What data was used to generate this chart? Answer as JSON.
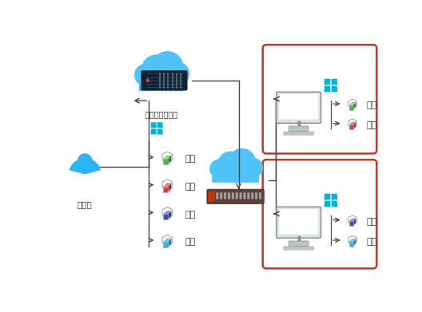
{
  "bg_color": "#ffffff",
  "fig_w": 5.28,
  "fig_h": 3.91,
  "dpi": 100,
  "admin_label": "管理员",
  "cloud1_label": "森途云管理平台",
  "apps_left": [
    {
      "label": "设计",
      "color_fill": "#4caf50",
      "color_outline": "#999999"
    },
    {
      "label": "编程",
      "color_fill": "#e53935",
      "color_outline": "#999999"
    },
    {
      "label": "语音",
      "color_fill": "#3f51b5",
      "color_outline": "#999999"
    },
    {
      "label": "办公",
      "color_fill": "#29b6f6",
      "color_outline": "#999999"
    }
  ],
  "box1_apps": [
    {
      "label": "设计",
      "color_fill": "#4caf50",
      "color_outline": "#999999"
    },
    {
      "label": "编程",
      "color_fill": "#e53935",
      "color_outline": "#999999"
    }
  ],
  "box2_apps": [
    {
      "label": "语音",
      "color_fill": "#3f51b5",
      "color_outline": "#999999"
    },
    {
      "label": "办公",
      "color_fill": "#29b6f6",
      "color_outline": "#999999"
    }
  ],
  "box_border_color": "#c0392b",
  "win_color": "#00b4d8",
  "arrow_color": "#444444",
  "cloud_color": "#4fc3f7",
  "admin_color": "#29b6f6",
  "line_color": "#555555",
  "router_color": "#8B4513",
  "server_bg": "#0d2137",
  "server_line": "#546e7a"
}
